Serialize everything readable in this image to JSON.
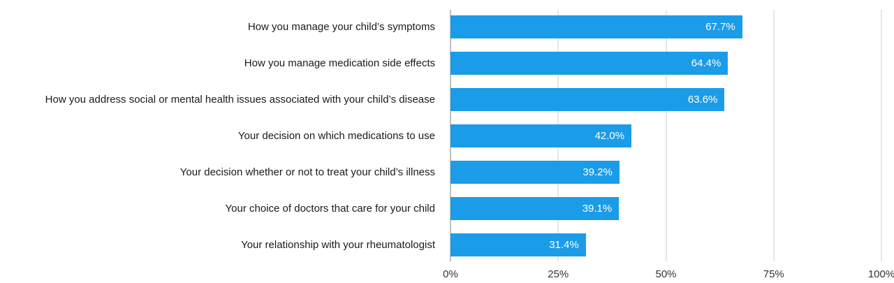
{
  "chart_data": {
    "type": "bar",
    "orientation": "horizontal",
    "title": "",
    "xlabel": "",
    "ylabel": "",
    "categories": [
      "How you manage your child’s symptoms",
      "How you manage medication side effects",
      "How you address social or mental health issues associated with your child’s disease",
      "Your decision on which medications to use",
      "Your decision whether or not to treat your child’s illness",
      "Your choice of doctors that care for your child",
      "Your relationship with your rheumatologist"
    ],
    "values": [
      67.7,
      64.4,
      63.6,
      42.0,
      39.2,
      39.1,
      31.4
    ],
    "value_labels": [
      "67.7%",
      "64.4%",
      "63.6%",
      "42.0%",
      "39.2%",
      "39.1%",
      "31.4%"
    ],
    "x_ticks": [
      "0%",
      "25%",
      "50%",
      "75%",
      "100%"
    ],
    "x_tick_values": [
      0,
      25,
      50,
      75,
      100
    ],
    "xlim": [
      0,
      100
    ],
    "grid": true,
    "legend": "none",
    "bar_color": "#1b9ce8",
    "value_label_color": "#ffffff",
    "gridline_color": "#cccccc",
    "zero_line_color": "#808080",
    "category_label_color": "#1a1a1a",
    "tick_label_color": "#333333"
  }
}
